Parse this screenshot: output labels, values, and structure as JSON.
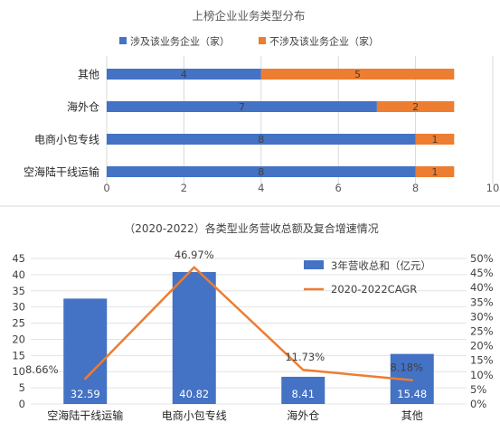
{
  "chart_data": [
    {
      "type": "bar",
      "orientation": "horizontal",
      "stacked": true,
      "title": "上榜企业业务类型分布",
      "categories": [
        "其他",
        "海外仓",
        "电商小包专线",
        "空海陆干线运输"
      ],
      "series": [
        {
          "name": "涉及该业务企业（家）",
          "color": "#4472c4",
          "values": [
            4,
            7,
            8,
            8
          ]
        },
        {
          "name": "不涉及该业务企业（家）",
          "color": "#ed7d31",
          "values": [
            5,
            2,
            1,
            1
          ]
        }
      ],
      "xlim": [
        0,
        10
      ],
      "xticks": [
        "0",
        "2",
        "4",
        "6",
        "8",
        "10"
      ],
      "grid": "vertical",
      "legend": "top"
    },
    {
      "type": "bar+line",
      "title": "（2020-2022）各类型业务营收总额及复合增速情况",
      "categories": [
        "空海陆干线运输",
        "电商小包专线",
        "海外仓",
        "其他"
      ],
      "bar_series": {
        "name": "3年营收总和（亿元）",
        "color": "#4472c4",
        "values": [
          32.59,
          40.82,
          8.41,
          15.48
        ],
        "labels": [
          "32.59",
          "40.82",
          "8.41",
          "15.48"
        ]
      },
      "line_series": {
        "name": "2020-2022CAGR",
        "color": "#ed7d31",
        "values": [
          8.66,
          46.97,
          11.73,
          8.18
        ],
        "labels": [
          "8.66%",
          "46.97%",
          "11.73%",
          "8.18%"
        ]
      },
      "ylim_left": [
        0,
        45
      ],
      "yticks_left": [
        "0",
        "5",
        "10",
        "15",
        "20",
        "25",
        "30",
        "35",
        "40",
        "45"
      ],
      "ylim_right": [
        0,
        50
      ],
      "yticks_right": [
        "0%",
        "5%",
        "10%",
        "15%",
        "20%",
        "25%",
        "30%",
        "35%",
        "40%",
        "45%",
        "50%"
      ],
      "grid": "horizontal",
      "legend": "top-right"
    }
  ]
}
